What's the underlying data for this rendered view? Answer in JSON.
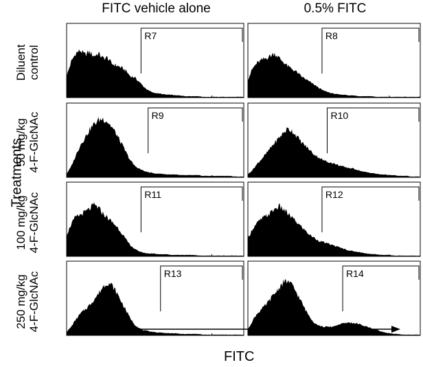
{
  "chart_data": {
    "type": "area",
    "columns": [
      "FITC vehicle alone",
      "0.5% FITC"
    ],
    "ylabel": "Treatments",
    "xlabel": "FITC",
    "rows": [
      {
        "line1": "Diluent",
        "line2": "control"
      },
      {
        "line1": "50 mg/kg",
        "line2": "4-F-GlcNAc"
      },
      {
        "line1": "100 mg/kg",
        "line2": "4-F-GlcNAc"
      },
      {
        "line1": "250 mg/kg",
        "line2": "4-F-GlcNAc"
      }
    ],
    "panels": [
      {
        "row": 0,
        "col": 0,
        "gate": "R7",
        "gate_start": 0.42,
        "histogram": [
          0.3,
          0.5,
          0.62,
          0.66,
          0.6,
          0.64,
          0.58,
          0.62,
          0.55,
          0.56,
          0.47,
          0.45,
          0.42,
          0.38,
          0.3,
          0.28,
          0.22,
          0.15,
          0.1,
          0.07,
          0.06,
          0.05,
          0.04,
          0.04,
          0.03,
          0.03,
          0.02,
          0.02,
          0.02,
          0.02,
          0.01,
          0.01,
          0.01,
          0.01,
          0.01,
          0.01,
          0.01,
          0.01,
          0.01,
          0.01
        ]
      },
      {
        "row": 0,
        "col": 1,
        "gate": "R8",
        "gate_start": 0.43,
        "histogram": [
          0.25,
          0.4,
          0.48,
          0.52,
          0.55,
          0.58,
          0.62,
          0.56,
          0.5,
          0.44,
          0.4,
          0.36,
          0.3,
          0.26,
          0.22,
          0.18,
          0.14,
          0.1,
          0.08,
          0.06,
          0.05,
          0.04,
          0.04,
          0.03,
          0.03,
          0.02,
          0.02,
          0.02,
          0.02,
          0.01,
          0.01,
          0.01,
          0.01,
          0.01,
          0.01,
          0.01,
          0.01,
          0.01,
          0.01,
          0.01
        ]
      },
      {
        "row": 1,
        "col": 0,
        "gate": "R9",
        "gate_start": 0.46,
        "histogram": [
          0.05,
          0.15,
          0.3,
          0.45,
          0.55,
          0.66,
          0.74,
          0.8,
          0.82,
          0.78,
          0.7,
          0.6,
          0.48,
          0.36,
          0.24,
          0.16,
          0.12,
          0.09,
          0.07,
          0.06,
          0.05,
          0.05,
          0.04,
          0.04,
          0.04,
          0.03,
          0.03,
          0.03,
          0.03,
          0.03,
          0.02,
          0.02,
          0.02,
          0.02,
          0.02,
          0.02,
          0.02,
          0.01,
          0.01,
          0.01
        ]
      },
      {
        "row": 1,
        "col": 1,
        "gate": "R10",
        "gate_start": 0.46,
        "histogram": [
          0.04,
          0.1,
          0.18,
          0.25,
          0.32,
          0.4,
          0.48,
          0.55,
          0.62,
          0.68,
          0.65,
          0.58,
          0.5,
          0.44,
          0.38,
          0.32,
          0.28,
          0.24,
          0.22,
          0.2,
          0.18,
          0.16,
          0.14,
          0.13,
          0.12,
          0.1,
          0.08,
          0.07,
          0.06,
          0.05,
          0.04,
          0.04,
          0.03,
          0.03,
          0.02,
          0.02,
          0.02,
          0.01,
          0.01,
          0.01
        ]
      },
      {
        "row": 2,
        "col": 0,
        "gate": "R11",
        "gate_start": 0.42,
        "histogram": [
          0.3,
          0.45,
          0.55,
          0.58,
          0.62,
          0.66,
          0.72,
          0.68,
          0.6,
          0.54,
          0.48,
          0.42,
          0.34,
          0.24,
          0.16,
          0.1,
          0.07,
          0.05,
          0.04,
          0.04,
          0.03,
          0.03,
          0.03,
          0.02,
          0.02,
          0.02,
          0.02,
          0.02,
          0.02,
          0.01,
          0.01,
          0.01,
          0.01,
          0.01,
          0.01,
          0.01,
          0.01,
          0.01,
          0.01,
          0.01
        ]
      },
      {
        "row": 2,
        "col": 1,
        "gate": "R12",
        "gate_start": 0.43,
        "histogram": [
          0.25,
          0.38,
          0.46,
          0.52,
          0.56,
          0.6,
          0.66,
          0.7,
          0.66,
          0.6,
          0.54,
          0.48,
          0.42,
          0.36,
          0.3,
          0.26,
          0.22,
          0.2,
          0.18,
          0.16,
          0.14,
          0.12,
          0.1,
          0.08,
          0.07,
          0.06,
          0.05,
          0.04,
          0.03,
          0.03,
          0.02,
          0.02,
          0.02,
          0.01,
          0.01,
          0.01,
          0.01,
          0.01,
          0.01,
          0.01
        ]
      },
      {
        "row": 3,
        "col": 0,
        "gate": "R13",
        "gate_start": 0.53,
        "histogram": [
          0.05,
          0.12,
          0.22,
          0.3,
          0.36,
          0.42,
          0.5,
          0.58,
          0.68,
          0.74,
          0.7,
          0.6,
          0.48,
          0.36,
          0.24,
          0.15,
          0.1,
          0.07,
          0.06,
          0.05,
          0.04,
          0.04,
          0.03,
          0.03,
          0.03,
          0.02,
          0.02,
          0.02,
          0.02,
          0.02,
          0.01,
          0.01,
          0.01,
          0.01,
          0.01,
          0.01,
          0.01,
          0.01,
          0.01,
          0.01
        ]
      },
      {
        "row": 3,
        "col": 1,
        "gate": "R14",
        "gate_start": 0.55,
        "histogram": [
          0.08,
          0.2,
          0.3,
          0.36,
          0.42,
          0.5,
          0.58,
          0.66,
          0.74,
          0.76,
          0.7,
          0.6,
          0.48,
          0.36,
          0.26,
          0.18,
          0.14,
          0.12,
          0.12,
          0.12,
          0.14,
          0.16,
          0.17,
          0.18,
          0.17,
          0.16,
          0.14,
          0.12,
          0.1,
          0.08,
          0.06,
          0.04,
          0.03,
          0.02,
          0.02,
          0.01,
          0.01,
          0.01,
          0.01,
          0.01
        ]
      }
    ]
  }
}
